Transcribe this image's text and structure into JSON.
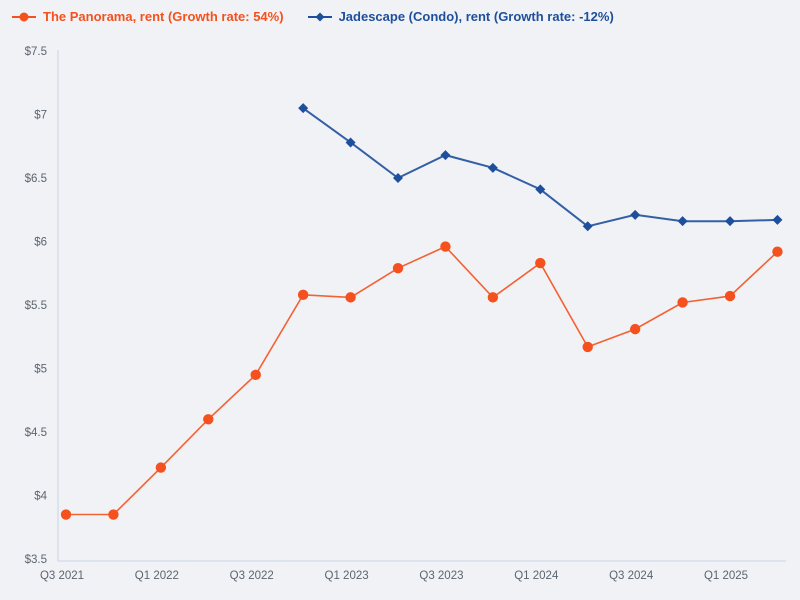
{
  "legend": {
    "items": [
      {
        "label": "The Panorama, rent (Growth rate: 54%)",
        "color": "#f4511e",
        "marker": "circle"
      },
      {
        "label": "Jadescape (Condo), rent (Growth rate: -12%)",
        "color": "#1e4f9c",
        "marker": "diamond"
      }
    ]
  },
  "chart_data": {
    "type": "line",
    "x": [
      "Q3 2021",
      "Q4 2021",
      "Q1 2022",
      "Q2 2022",
      "Q3 2022",
      "Q4 2022",
      "Q1 2023",
      "Q2 2023",
      "Q3 2023",
      "Q4 2023",
      "Q1 2024",
      "Q2 2024",
      "Q3 2024",
      "Q4 2024",
      "Q1 2025",
      "Q2 2025"
    ],
    "x_tick_labels": [
      "Q3 2021",
      "Q1 2022",
      "Q3 2022",
      "Q1 2023",
      "Q3 2023",
      "Q1 2024",
      "Q3 2024",
      "Q1 2025"
    ],
    "series": [
      {
        "name": "The Panorama, rent",
        "growth_rate": "54%",
        "color": "#f4511e",
        "marker": "circle",
        "values": [
          3.85,
          3.85,
          4.22,
          4.6,
          4.95,
          5.58,
          5.56,
          5.79,
          5.96,
          5.56,
          5.83,
          5.17,
          5.31,
          5.52,
          5.57,
          5.92
        ]
      },
      {
        "name": "Jadescape (Condo), rent",
        "growth_rate": "-12%",
        "color": "#1e4f9c",
        "marker": "diamond",
        "values": [
          null,
          null,
          null,
          null,
          null,
          7.05,
          6.78,
          6.5,
          6.68,
          6.58,
          6.41,
          6.12,
          6.21,
          6.16,
          6.16,
          6.17
        ]
      }
    ],
    "title": "",
    "xlabel": "",
    "ylabel": "",
    "y_ticks": [
      "$3.5",
      "$4",
      "$4.5",
      "$5",
      "$5.5",
      "$6",
      "$6.5",
      "$7",
      "$7.5"
    ],
    "y_range": [
      3.5,
      7.5
    ],
    "grid": false,
    "legend_position": "top-left"
  },
  "colors": {
    "background": "#f1f2f5",
    "axis_line": "#c9d4e6",
    "tick_text": "#5b6570"
  }
}
